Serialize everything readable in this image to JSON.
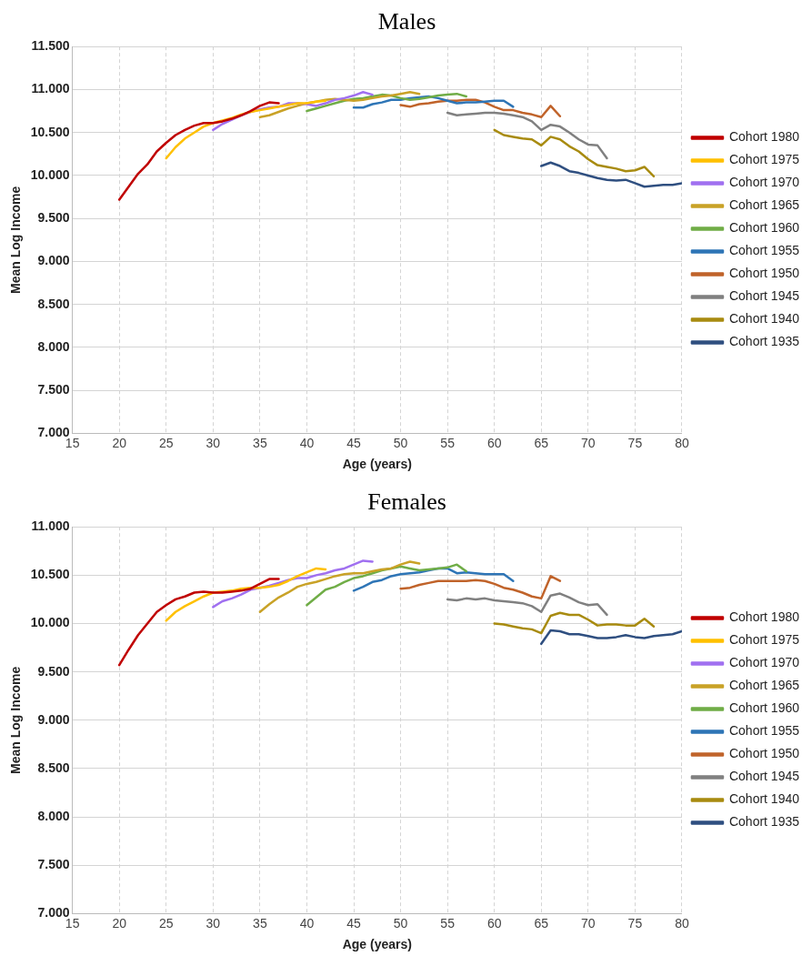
{
  "chart_data": [
    {
      "type": "line",
      "title": "Males",
      "xlabel": "Age (years)",
      "ylabel": "Mean Log Income",
      "xlim": [
        15,
        80
      ],
      "xticks": [
        15,
        20,
        25,
        30,
        35,
        40,
        45,
        50,
        55,
        60,
        65,
        70,
        75,
        80
      ],
      "ylim": [
        7,
        11.5
      ],
      "yticks": [
        {
          "value": 7,
          "label": "7.000"
        },
        {
          "value": 7.5,
          "label": "7.500"
        },
        {
          "value": 8,
          "label": "8.000"
        },
        {
          "value": 8.5,
          "label": "8.500"
        },
        {
          "value": 9,
          "label": "9.000"
        },
        {
          "value": 9.5,
          "label": "9.500"
        },
        {
          "value": 10,
          "label": "10.000"
        },
        {
          "value": 10.5,
          "label": "10.500"
        },
        {
          "value": 11,
          "label": "11.000"
        },
        {
          "value": 11.5,
          "label": "11.500"
        }
      ],
      "grid": true,
      "legend": "right",
      "marker": "none",
      "line_style": "solid",
      "series": [
        {
          "name": "Cohort 1980",
          "color": "#c00000",
          "x": [
            20,
            21,
            22,
            23,
            24,
            25,
            26,
            27,
            28,
            29,
            30,
            31,
            32,
            33,
            34,
            35,
            36,
            37
          ],
          "values": [
            9.72,
            9.87,
            10.02,
            10.13,
            10.28,
            10.38,
            10.47,
            10.53,
            10.58,
            10.61,
            10.61,
            10.63,
            10.66,
            10.7,
            10.75,
            10.81,
            10.85,
            10.84
          ]
        },
        {
          "name": "Cohort 1975",
          "color": "#ffc000",
          "x": [
            25,
            26,
            27,
            28,
            29,
            30,
            31,
            32,
            33,
            34,
            35,
            36,
            37,
            38,
            39,
            40,
            41,
            42
          ],
          "values": [
            10.2,
            10.33,
            10.43,
            10.5,
            10.57,
            10.61,
            10.64,
            10.67,
            10.71,
            10.74,
            10.76,
            10.78,
            10.8,
            10.82,
            10.84,
            10.84,
            10.86,
            10.87
          ]
        },
        {
          "name": "Cohort 1970",
          "color": "#a070f0",
          "x": [
            30,
            31,
            32,
            33,
            34,
            35,
            36,
            37,
            38,
            39,
            40,
            41,
            42,
            43,
            44,
            45,
            46,
            47
          ],
          "values": [
            10.53,
            10.6,
            10.65,
            10.7,
            10.74,
            10.77,
            10.79,
            10.8,
            10.84,
            10.84,
            10.83,
            10.81,
            10.84,
            10.88,
            10.9,
            10.93,
            10.97,
            10.94
          ]
        },
        {
          "name": "Cohort 1965",
          "color": "#c9a227",
          "x": [
            35,
            36,
            37,
            38,
            39,
            40,
            41,
            42,
            43,
            44,
            45,
            46,
            47,
            48,
            49,
            50,
            51,
            52
          ],
          "values": [
            10.68,
            10.7,
            10.74,
            10.78,
            10.81,
            10.84,
            10.86,
            10.88,
            10.89,
            10.88,
            10.87,
            10.88,
            10.9,
            10.92,
            10.93,
            10.95,
            10.97,
            10.95
          ]
        },
        {
          "name": "Cohort 1960",
          "color": "#70ad47",
          "x": [
            40,
            41,
            42,
            43,
            44,
            45,
            46,
            47,
            48,
            49,
            50,
            51,
            52,
            53,
            54,
            55,
            56,
            57
          ],
          "values": [
            10.75,
            10.78,
            10.81,
            10.84,
            10.87,
            10.89,
            10.9,
            10.92,
            10.94,
            10.93,
            10.9,
            10.88,
            10.89,
            10.91,
            10.93,
            10.94,
            10.95,
            10.92
          ]
        },
        {
          "name": "Cohort 1955",
          "color": "#2e75b6",
          "x": [
            45,
            46,
            47,
            48,
            49,
            50,
            51,
            52,
            53,
            54,
            55,
            56,
            57,
            58,
            59,
            60,
            61,
            62
          ],
          "values": [
            10.79,
            10.79,
            10.83,
            10.85,
            10.88,
            10.88,
            10.9,
            10.91,
            10.92,
            10.9,
            10.87,
            10.84,
            10.85,
            10.85,
            10.86,
            10.87,
            10.87,
            10.8
          ]
        },
        {
          "name": "Cohort 1950",
          "color": "#c0632a",
          "x": [
            50,
            51,
            52,
            53,
            54,
            55,
            56,
            57,
            58,
            59,
            60,
            61,
            62,
            63,
            64,
            65,
            66,
            67
          ],
          "values": [
            10.82,
            10.8,
            10.83,
            10.84,
            10.86,
            10.87,
            10.87,
            10.88,
            10.88,
            10.85,
            10.8,
            10.76,
            10.76,
            10.73,
            10.71,
            10.68,
            10.81,
            10.69
          ]
        },
        {
          "name": "Cohort 1945",
          "color": "#808080",
          "x": [
            55,
            56,
            57,
            58,
            59,
            60,
            61,
            62,
            63,
            64,
            65,
            66,
            67,
            68,
            69,
            70,
            71,
            72
          ],
          "values": [
            10.73,
            10.7,
            10.71,
            10.72,
            10.73,
            10.73,
            10.72,
            10.7,
            10.68,
            10.63,
            10.53,
            10.59,
            10.57,
            10.5,
            10.42,
            10.36,
            10.35,
            10.2
          ]
        },
        {
          "name": "Cohort 1940",
          "color": "#a88b10",
          "x": [
            60,
            61,
            62,
            63,
            64,
            65,
            66,
            67,
            68,
            69,
            70,
            71,
            72,
            73,
            74,
            75,
            76,
            77
          ],
          "values": [
            10.53,
            10.47,
            10.45,
            10.43,
            10.42,
            10.35,
            10.45,
            10.42,
            10.34,
            10.28,
            10.19,
            10.12,
            10.1,
            10.08,
            10.05,
            10.06,
            10.1,
            9.99
          ]
        },
        {
          "name": "Cohort 1935",
          "color": "#2f4f80",
          "x": [
            65,
            66,
            67,
            68,
            69,
            70,
            71,
            72,
            73,
            74,
            75,
            76,
            77,
            78,
            79,
            80
          ],
          "values": [
            10.11,
            10.15,
            10.11,
            10.05,
            10.03,
            10,
            9.97,
            9.95,
            9.94,
            9.95,
            9.91,
            9.87,
            9.88,
            9.89,
            9.89,
            9.91
          ]
        }
      ]
    },
    {
      "type": "line",
      "title": "Females",
      "xlabel": "Age (years)",
      "ylabel": "Mean Log Income",
      "xlim": [
        15,
        80
      ],
      "xticks": [
        15,
        20,
        25,
        30,
        35,
        40,
        45,
        50,
        55,
        60,
        65,
        70,
        75,
        80
      ],
      "ylim": [
        7,
        11
      ],
      "yticks": [
        {
          "value": 7,
          "label": "7.000"
        },
        {
          "value": 7.5,
          "label": "7.500"
        },
        {
          "value": 8,
          "label": "8.000"
        },
        {
          "value": 8.5,
          "label": "8.500"
        },
        {
          "value": 9,
          "label": "9.000"
        },
        {
          "value": 9.5,
          "label": "9.500"
        },
        {
          "value": 10,
          "label": "10.000"
        },
        {
          "value": 10.5,
          "label": "10.500"
        },
        {
          "value": 11,
          "label": "11.000"
        }
      ],
      "grid": true,
      "legend": "right",
      "marker": "none",
      "line_style": "solid",
      "series": [
        {
          "name": "Cohort 1980",
          "color": "#c00000",
          "x": [
            20,
            21,
            22,
            23,
            24,
            25,
            26,
            27,
            28,
            29,
            30,
            31,
            32,
            33,
            34,
            35,
            36,
            37
          ],
          "values": [
            9.57,
            9.73,
            9.88,
            10,
            10.12,
            10.19,
            10.25,
            10.28,
            10.32,
            10.33,
            10.32,
            10.32,
            10.33,
            10.34,
            10.36,
            10.41,
            10.46,
            10.46
          ]
        },
        {
          "name": "Cohort 1975",
          "color": "#ffc000",
          "x": [
            25,
            26,
            27,
            28,
            29,
            30,
            31,
            32,
            33,
            34,
            35,
            36,
            37,
            38,
            39,
            40,
            41,
            42
          ],
          "values": [
            10.03,
            10.12,
            10.18,
            10.23,
            10.28,
            10.32,
            10.33,
            10.34,
            10.36,
            10.37,
            10.37,
            10.38,
            10.4,
            10.44,
            10.49,
            10.53,
            10.57,
            10.56
          ]
        },
        {
          "name": "Cohort 1970",
          "color": "#a070f0",
          "x": [
            30,
            31,
            32,
            33,
            34,
            35,
            36,
            37,
            38,
            39,
            40,
            41,
            42,
            43,
            44,
            45,
            46,
            47
          ],
          "values": [
            10.17,
            10.23,
            10.26,
            10.3,
            10.35,
            10.37,
            10.39,
            10.42,
            10.45,
            10.47,
            10.47,
            10.5,
            10.52,
            10.55,
            10.57,
            10.61,
            10.65,
            10.64
          ]
        },
        {
          "name": "Cohort 1965",
          "color": "#c9a227",
          "x": [
            35,
            36,
            37,
            38,
            39,
            40,
            41,
            42,
            43,
            44,
            45,
            46,
            47,
            48,
            49,
            50,
            51,
            52
          ],
          "values": [
            10.12,
            10.2,
            10.27,
            10.32,
            10.38,
            10.41,
            10.43,
            10.46,
            10.49,
            10.51,
            10.52,
            10.52,
            10.54,
            10.56,
            10.57,
            10.61,
            10.64,
            10.62
          ]
        },
        {
          "name": "Cohort 1960",
          "color": "#70ad47",
          "x": [
            40,
            41,
            42,
            43,
            44,
            45,
            46,
            47,
            48,
            49,
            50,
            51,
            52,
            53,
            54,
            55,
            56,
            57
          ],
          "values": [
            10.19,
            10.27,
            10.35,
            10.38,
            10.43,
            10.47,
            10.49,
            10.52,
            10.55,
            10.57,
            10.59,
            10.57,
            10.55,
            10.56,
            10.57,
            10.58,
            10.61,
            10.54
          ]
        },
        {
          "name": "Cohort 1955",
          "color": "#2e75b6",
          "x": [
            45,
            46,
            47,
            48,
            49,
            50,
            51,
            52,
            53,
            54,
            55,
            56,
            57,
            58,
            59,
            60,
            61,
            62
          ],
          "values": [
            10.34,
            10.38,
            10.43,
            10.45,
            10.49,
            10.51,
            10.52,
            10.53,
            10.55,
            10.57,
            10.57,
            10.52,
            10.53,
            10.52,
            10.51,
            10.51,
            10.51,
            10.44
          ]
        },
        {
          "name": "Cohort 1950",
          "color": "#c0632a",
          "x": [
            50,
            51,
            52,
            53,
            54,
            55,
            56,
            57,
            58,
            59,
            60,
            61,
            62,
            63,
            64,
            65,
            66,
            67
          ],
          "values": [
            10.36,
            10.37,
            10.4,
            10.42,
            10.44,
            10.44,
            10.44,
            10.44,
            10.45,
            10.44,
            10.41,
            10.37,
            10.35,
            10.32,
            10.28,
            10.26,
            10.49,
            10.44
          ]
        },
        {
          "name": "Cohort 1945",
          "color": "#808080",
          "x": [
            55,
            56,
            57,
            58,
            59,
            60,
            61,
            62,
            63,
            64,
            65,
            66,
            67,
            68,
            69,
            70,
            71,
            72
          ],
          "values": [
            10.25,
            10.24,
            10.26,
            10.25,
            10.26,
            10.24,
            10.23,
            10.22,
            10.21,
            10.18,
            10.12,
            10.29,
            10.31,
            10.27,
            10.22,
            10.19,
            10.2,
            10.09
          ]
        },
        {
          "name": "Cohort 1940",
          "color": "#a88b10",
          "x": [
            60,
            61,
            62,
            63,
            64,
            65,
            66,
            67,
            68,
            69,
            70,
            71,
            72,
            73,
            74,
            75,
            76,
            77
          ],
          "values": [
            10,
            9.99,
            9.97,
            9.95,
            9.94,
            9.9,
            10.08,
            10.11,
            10.09,
            10.09,
            10.04,
            9.98,
            9.99,
            9.99,
            9.98,
            9.98,
            10.05,
            9.97
          ]
        },
        {
          "name": "Cohort 1935",
          "color": "#2f4f80",
          "x": [
            65,
            66,
            67,
            68,
            69,
            70,
            71,
            72,
            73,
            74,
            75,
            76,
            77,
            78,
            79,
            80
          ],
          "values": [
            9.79,
            9.93,
            9.92,
            9.89,
            9.89,
            9.87,
            9.85,
            9.85,
            9.86,
            9.88,
            9.86,
            9.85,
            9.87,
            9.88,
            9.89,
            9.92
          ]
        }
      ]
    }
  ]
}
